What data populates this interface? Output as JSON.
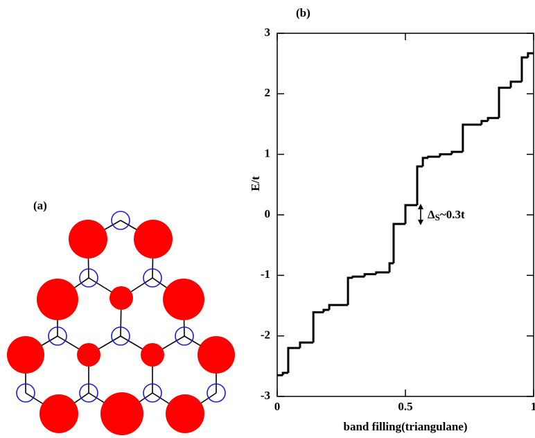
{
  "panel_a": {
    "label": "(a)"
  },
  "chart_data": {
    "type": "step",
    "panel_label": "(b)",
    "xlabel": "band filling(triangulane)",
    "ylabel": "E/t",
    "annotation": {
      "symbol": "Δ",
      "subscript": "S",
      "text": "~0.3t"
    },
    "x": [
      0,
      0.022,
      0.043,
      0.089,
      0.141,
      0.181,
      0.203,
      0.276,
      0.295,
      0.341,
      0.386,
      0.438,
      0.454,
      0.5,
      0.546,
      0.568,
      0.589,
      0.635,
      0.681,
      0.724,
      0.797,
      0.822,
      0.865,
      0.911,
      0.954,
      0.978
    ],
    "values": [
      -2.65,
      -2.61,
      -2.2,
      -2.11,
      -1.61,
      -1.57,
      -1.49,
      -1.04,
      -1.02,
      -0.98,
      -0.95,
      -0.8,
      -0.15,
      0.16,
      0.8,
      0.94,
      0.96,
      1.0,
      1.04,
      1.49,
      1.55,
      1.6,
      2.1,
      2.2,
      2.6,
      2.67
    ],
    "color": "#000000",
    "xlim": [
      0,
      1
    ],
    "xticks": [
      0,
      0.5,
      1
    ],
    "ylim": [
      -3,
      3
    ],
    "yticks": [
      -3,
      -2,
      -1,
      0,
      1,
      2,
      3
    ]
  }
}
